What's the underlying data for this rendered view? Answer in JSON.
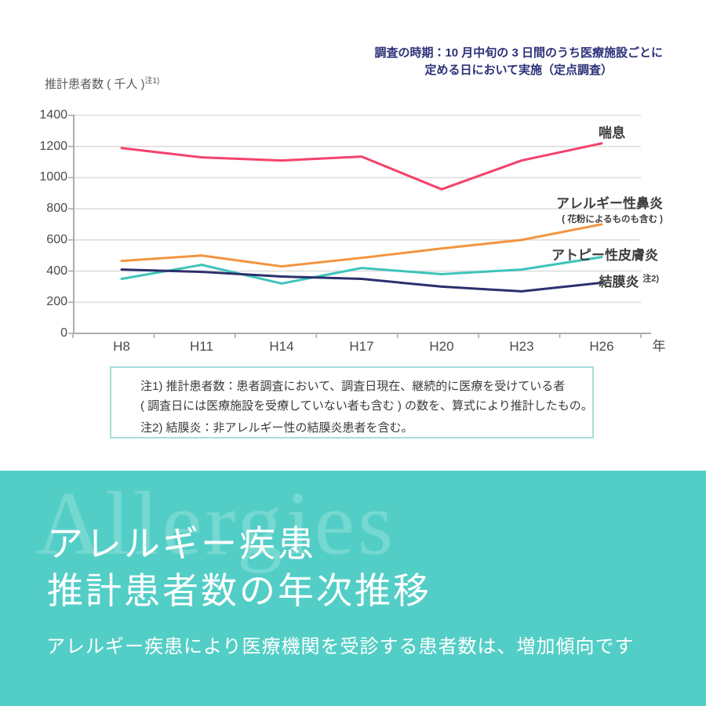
{
  "annotation": {
    "line1": "調査の時期：10 月中旬の 3 日間のうち医療施設ごとに",
    "line2": "定める日において実施（定点調査）"
  },
  "y_axis_label": {
    "text": "推計患者数 ( 千人 )",
    "superscript": "注1)"
  },
  "chart_data": {
    "type": "line",
    "categories": [
      "H8",
      "H11",
      "H14",
      "H17",
      "H20",
      "H23",
      "H26"
    ],
    "x_axis_suffix": "年",
    "xlabel": "年 (Heisei era year)",
    "ylabel": "推計患者数 ( 千人 )",
    "ylim": [
      0,
      1400
    ],
    "ytick_step": 200,
    "grid": true,
    "legend_position": "right-of-line-ends",
    "series": [
      {
        "name": "喘息",
        "color": "#f4426b",
        "values": [
          1190,
          1130,
          1110,
          1135,
          925,
          1110,
          1220
        ]
      },
      {
        "name": "アレルギー性鼻炎",
        "subname": "( 花粉によるものも含む )",
        "color": "#f2953f",
        "values": [
          465,
          500,
          430,
          485,
          545,
          600,
          700
        ]
      },
      {
        "name": "アトピー性皮膚炎",
        "color": "#3ec4ba",
        "values": [
          350,
          440,
          320,
          420,
          380,
          410,
          490
        ]
      },
      {
        "name": "結膜炎",
        "superscript": "注2)",
        "color": "#2b2f6c",
        "values": [
          410,
          395,
          365,
          350,
          300,
          270,
          325
        ]
      }
    ]
  },
  "notes": {
    "line1": "注1) 推計患者数：患者調査において、調査日現在、継続的に医療を受けている者",
    "line2": "( 調査日には医療施設を受療していない者も含む ) の数を、算式により推計したもの。",
    "line3": "注2) 結膜炎：非アレルギー性の結膜炎患者を含む。"
  },
  "footer": {
    "watermark": "Allergies",
    "title_line1": "アレルギー疾患",
    "title_line2": "推計患者数の年次推移",
    "subtitle": "アレルギー疾患により医療機関を受診する患者数は、増加傾向です",
    "background_color": "#53cec6",
    "watermark_color": "#75d8d1"
  },
  "style_colors": {
    "grid": "#dddddd",
    "axis": "#acacac",
    "tick_label": "#4a4a4a",
    "annotation_navy": "#2c3178",
    "notes_border": "#a6deda"
  }
}
